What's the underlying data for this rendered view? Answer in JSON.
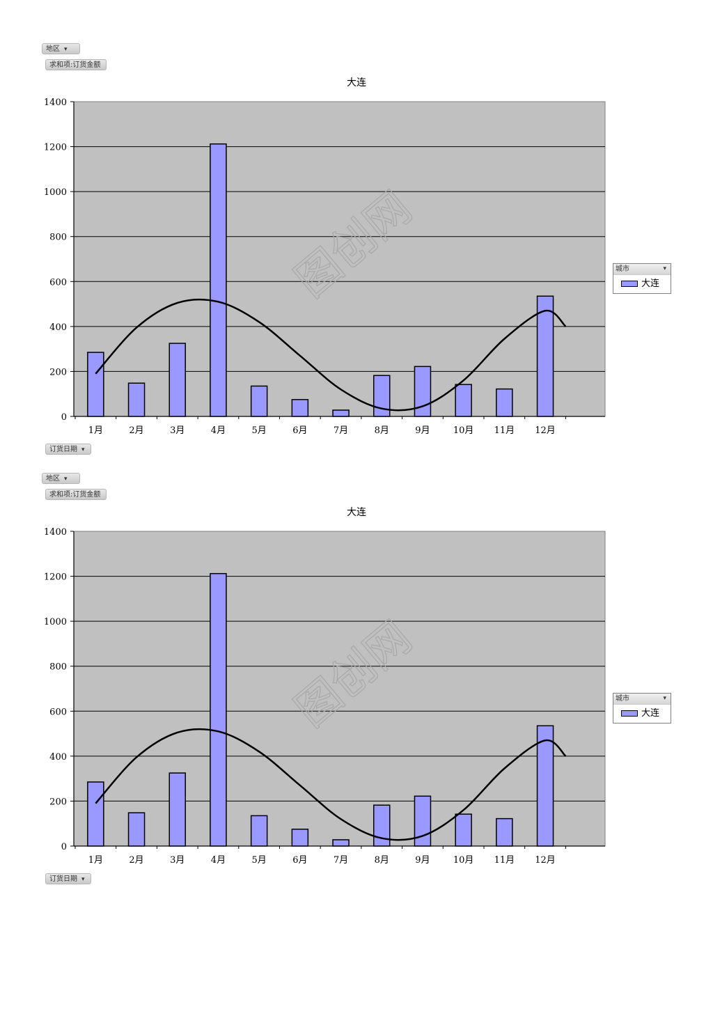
{
  "pivot": {
    "region_button": "地区",
    "measure_button": "求和项:订货金额",
    "date_button": "订货日期",
    "city_legend_header": "城市"
  },
  "icons": {
    "filter": "funnel-filter-icon",
    "dropdown": "dropdown-arrow-icon"
  },
  "watermark": "图创网",
  "colors": {
    "plot_bg": "#c0c0c0",
    "bar_fill": "#9999ff",
    "bar_stroke": "#000000",
    "trend_line": "#000000",
    "grid": "#000000"
  },
  "chart_data": [
    {
      "type": "bar",
      "title": "大连",
      "categories": [
        "1月",
        "2月",
        "3月",
        "4月",
        "5月",
        "6月",
        "7月",
        "8月",
        "9月",
        "10月",
        "11月",
        "12月"
      ],
      "series": [
        {
          "name": "大连",
          "values": [
            285,
            148,
            325,
            1212,
            135,
            75,
            28,
            182,
            222,
            142,
            122,
            535
          ]
        }
      ],
      "trendline": {
        "type": "polynomial",
        "points": [
          [
            1,
            190
          ],
          [
            2,
            395
          ],
          [
            3,
            505
          ],
          [
            4,
            510
          ],
          [
            5,
            420
          ],
          [
            6,
            270
          ],
          [
            7,
            120
          ],
          [
            8,
            35
          ],
          [
            9,
            45
          ],
          [
            10,
            160
          ],
          [
            11,
            345
          ],
          [
            12,
            470
          ],
          [
            12.5,
            400
          ]
        ]
      },
      "ylim": [
        0,
        1400
      ],
      "yticks": [
        0,
        200,
        400,
        600,
        800,
        1000,
        1200,
        1400
      ],
      "xlabel": "",
      "ylabel": "",
      "grid": true,
      "legend": "right"
    },
    {
      "type": "bar",
      "title": "大连",
      "categories": [
        "1月",
        "2月",
        "3月",
        "4月",
        "5月",
        "6月",
        "7月",
        "8月",
        "9月",
        "10月",
        "11月",
        "12月"
      ],
      "series": [
        {
          "name": "大连",
          "values": [
            285,
            148,
            325,
            1212,
            135,
            75,
            28,
            182,
            222,
            142,
            122,
            535
          ]
        }
      ],
      "trendline": {
        "type": "polynomial",
        "points": [
          [
            1,
            190
          ],
          [
            2,
            395
          ],
          [
            3,
            505
          ],
          [
            4,
            510
          ],
          [
            5,
            420
          ],
          [
            6,
            270
          ],
          [
            7,
            120
          ],
          [
            8,
            35
          ],
          [
            9,
            45
          ],
          [
            10,
            160
          ],
          [
            11,
            345
          ],
          [
            12,
            470
          ],
          [
            12.5,
            400
          ]
        ]
      },
      "ylim": [
        0,
        1400
      ],
      "yticks": [
        0,
        200,
        400,
        600,
        800,
        1000,
        1200,
        1400
      ],
      "xlabel": "",
      "ylabel": "",
      "grid": true,
      "legend": "right"
    }
  ]
}
